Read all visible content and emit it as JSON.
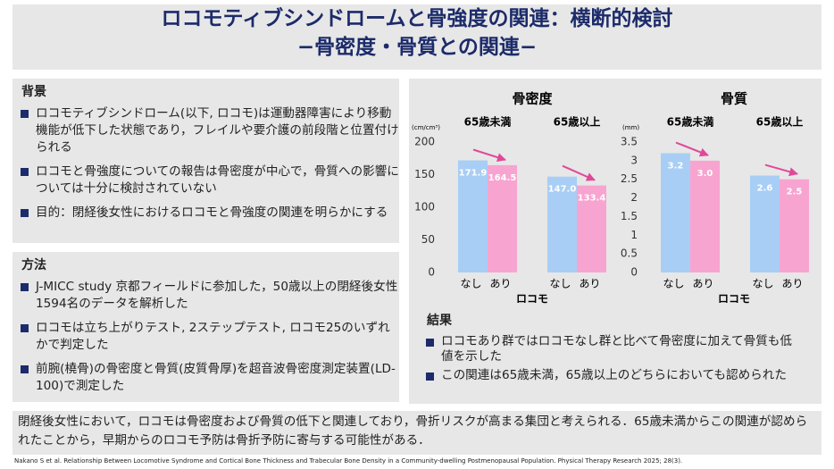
{
  "title": [
    "ロコモティブシンドロームと骨強度の関連：横断的検討",
    "−骨密度・骨質との関連−"
  ],
  "background": {
    "heading": "背景",
    "items": [
      "ロコモティブシンドローム(以下, ロコモ)は運動器障害により移動機能が低下した状態であり，フレイルや要介護の前段階と位置付けられる",
      "ロコモと骨強度についての報告は骨密度が中心で，骨質への影響については十分に検討されていない",
      "目的：閉経後女性におけるロコモと骨強度の関連を明らかにする"
    ]
  },
  "methods": {
    "heading": "方法",
    "items": [
      "J-MICC study 京都フィールドに参加した，50歳以上の閉経後女性1594名のデータを解析した",
      "ロコモは立ち上がりテスト, 2ステップテスト, ロコモ25のいずれかで判定した",
      "前腕(橈骨)の骨密度と骨質(皮質骨厚)を超音波骨密度測定装置(LD-100)で測定した"
    ]
  },
  "results": {
    "heading": "結果",
    "items": [
      "ロコモあり群ではロコモなし群と比べて骨密度に加えて骨質も低値を示した",
      "この関連は65歳未満，65歳以上のどちらにおいても認められた"
    ]
  },
  "conclusion": "閉経後女性において，ロコモは骨密度および骨質の低下と関連しており，骨折リスクが高まる集団と考えられる．65歳未満からこの関連が認められたことから，早期からのロコモ予防は骨折予防に寄与する可能性がある．",
  "citation": "Nakano S et al. Relationship Between Locomotive Syndrome and Cortical Bone Thickness and Trabecular Bone Density in a Community-dwelling Postmenopausal Population. Physical Therapy Research 2025; 28(3).",
  "chart_data": [
    {
      "type": "bar",
      "title": "骨密度",
      "y_unit": "(cm/cm³)",
      "x_label": "ロコモ",
      "categories": [
        "65歳未満",
        "65歳以上"
      ],
      "series": [
        {
          "name": "なし",
          "color": "#a8cef5",
          "values": [
            171.9,
            147.0
          ],
          "value_labels": [
            "171.9",
            "147.0"
          ]
        },
        {
          "name": "あり",
          "color": "#f8a4d0",
          "values": [
            164.5,
            133.4
          ],
          "value_labels": [
            "164.5",
            "133.4"
          ]
        }
      ],
      "ylim": [
        0,
        200
      ],
      "yticks": [
        0,
        50,
        100,
        150,
        200
      ],
      "arrow_color": "#e0489a"
    },
    {
      "type": "bar",
      "title": "骨質",
      "y_unit": "(mm)",
      "x_label": "ロコモ",
      "categories": [
        "65歳未満",
        "65歳以上"
      ],
      "series": [
        {
          "name": "なし",
          "color": "#a8cef5",
          "values": [
            3.2,
            2.6
          ],
          "value_labels": [
            "3.2",
            "2.6"
          ]
        },
        {
          "name": "あり",
          "color": "#f8a4d0",
          "values": [
            3.0,
            2.5
          ],
          "value_labels": [
            "3.0",
            "2.5"
          ]
        }
      ],
      "ylim": [
        0,
        3.5
      ],
      "yticks": [
        0,
        0.5,
        1,
        1.5,
        2,
        2.5,
        3,
        3.5
      ],
      "arrow_color": "#e0489a"
    }
  ]
}
